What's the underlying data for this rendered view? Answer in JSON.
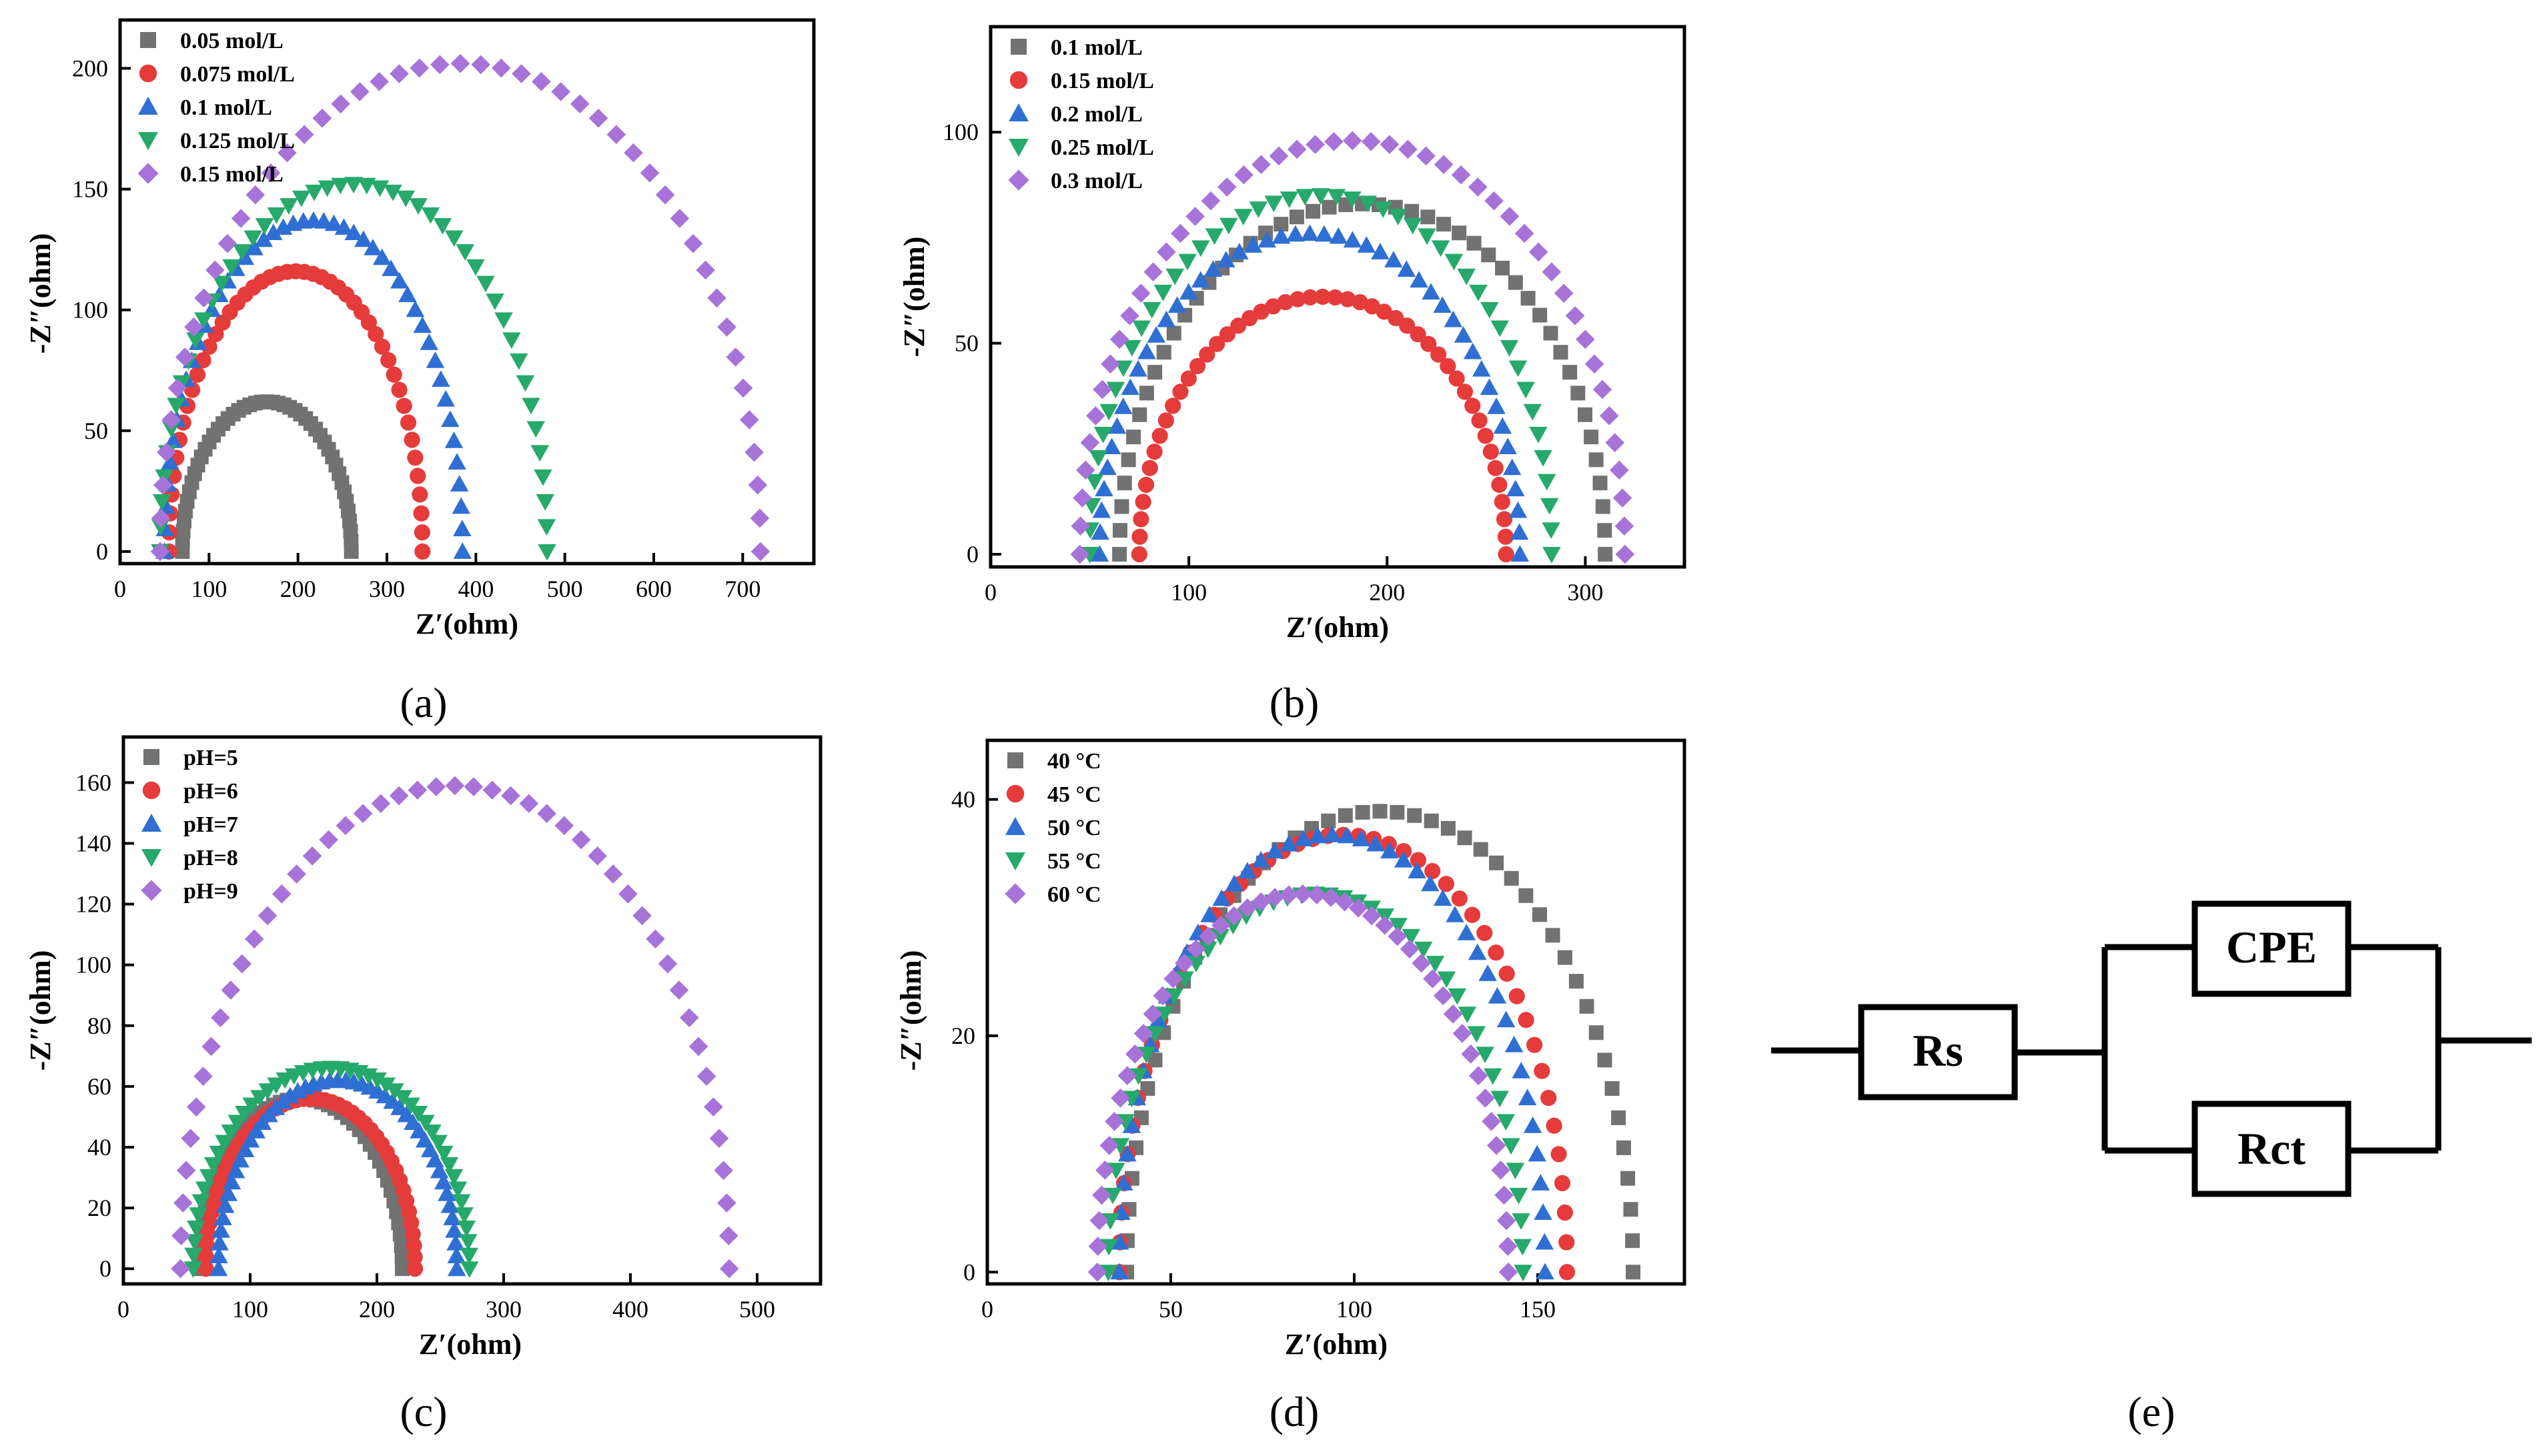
{
  "colors": {
    "s1": "#727272",
    "s2": "#e53b3b",
    "s3": "#2f6fd4",
    "s4": "#26a96a",
    "s5": "#a773d9",
    "axis": "#000000"
  },
  "chart_data": [
    {
      "id": "a",
      "type": "scatter",
      "panel_label": "(a)",
      "title": "",
      "xlabel": "Z′(ohm)",
      "ylabel": "-Z″(ohm)",
      "xlim": [
        0,
        780
      ],
      "ylim": [
        -5,
        220
      ],
      "xticks": [
        0,
        100,
        200,
        300,
        400,
        500,
        600,
        700
      ],
      "yticks": [
        0,
        50,
        100,
        150,
        200
      ],
      "legend_position": "top-left",
      "series": [
        {
          "name": "0.05 mol/L",
          "marker": "square",
          "rs": 70,
          "rct": 190,
          "ymax": 62
        },
        {
          "name": "0.075 mol/L",
          "marker": "circle",
          "rs": 55,
          "rct": 285,
          "ymax": 116
        },
        {
          "name": "0.1 mol/L",
          "marker": "triangle-up",
          "rs": 50,
          "rct": 335,
          "ymax": 137
        },
        {
          "name": "0.125 mol/L",
          "marker": "triangle-down",
          "rs": 45,
          "rct": 435,
          "ymax": 152
        },
        {
          "name": "0.15 mol/L",
          "marker": "diamond",
          "rs": 45,
          "rct": 675,
          "ymax": 202
        }
      ]
    },
    {
      "id": "b",
      "type": "scatter",
      "panel_label": "(b)",
      "title": "",
      "xlabel": "Z′(ohm)",
      "ylabel": "-Z″(ohm)",
      "xlim": [
        0,
        350
      ],
      "ylim": [
        -3,
        125
      ],
      "xticks": [
        0,
        100,
        200,
        300
      ],
      "yticks": [
        0,
        50,
        100
      ],
      "legend_position": "top-left",
      "series": [
        {
          "name": "0.1 mol/L",
          "marker": "square",
          "rs": 65,
          "rct": 245,
          "ymax": 83
        },
        {
          "name": "0.15 mol/L",
          "marker": "circle",
          "rs": 75,
          "rct": 185,
          "ymax": 61
        },
        {
          "name": "0.2 mol/L",
          "marker": "triangle-up",
          "rs": 55,
          "rct": 212,
          "ymax": 76
        },
        {
          "name": "0.25 mol/L",
          "marker": "triangle-down",
          "rs": 50,
          "rct": 233,
          "ymax": 85
        },
        {
          "name": "0.3 mol/L",
          "marker": "diamond",
          "rs": 45,
          "rct": 275,
          "ymax": 98
        }
      ]
    },
    {
      "id": "c",
      "type": "scatter",
      "panel_label": "(c)",
      "title": "",
      "xlabel": "Z′(ohm)",
      "ylabel": "-Z″(ohm)",
      "xlim": [
        0,
        550
      ],
      "ylim": [
        -5,
        175
      ],
      "xticks": [
        0,
        100,
        200,
        300,
        400,
        500
      ],
      "yticks": [
        0,
        20,
        40,
        60,
        80,
        100,
        120,
        140,
        160
      ],
      "legend_position": "top-left",
      "series": [
        {
          "name": "pH=5",
          "marker": "square",
          "rs": 60,
          "rct": 160,
          "ymax": 56
        },
        {
          "name": "pH=6",
          "marker": "circle",
          "rs": 65,
          "rct": 165,
          "ymax": 56
        },
        {
          "name": "pH=7",
          "marker": "triangle-up",
          "rs": 75,
          "rct": 188,
          "ymax": 62
        },
        {
          "name": "pH=8",
          "marker": "triangle-down",
          "rs": 55,
          "rct": 218,
          "ymax": 66
        },
        {
          "name": "pH=9",
          "marker": "diamond",
          "rs": 45,
          "rct": 433,
          "ymax": 159
        }
      ]
    },
    {
      "id": "d",
      "type": "scatter",
      "panel_label": "(d)",
      "title": "",
      "xlabel": "Z′(ohm)",
      "ylabel": "-Z″(ohm)",
      "xlim": [
        0,
        190
      ],
      "ylim": [
        -1,
        45
      ],
      "xticks": [
        0,
        50,
        100,
        150
      ],
      "yticks": [
        0,
        20,
        40
      ],
      "legend_position": "top-left",
      "series": [
        {
          "name": "40 °C",
          "marker": "square",
          "rs": 38,
          "rct": 138,
          "ymax": 39
        },
        {
          "name": "45 °C",
          "marker": "circle",
          "rs": 36,
          "rct": 122,
          "ymax": 37
        },
        {
          "name": "50 °C",
          "marker": "triangle-up",
          "rs": 36,
          "rct": 116,
          "ymax": 37
        },
        {
          "name": "55 °C",
          "marker": "triangle-down",
          "rs": 33,
          "rct": 113,
          "ymax": 32
        },
        {
          "name": "60 °C",
          "marker": "diamond",
          "rs": 30,
          "rct": 112,
          "ymax": 32
        }
      ]
    }
  ],
  "circuit": {
    "panel_label": "(e)",
    "rs_label": "Rs",
    "cpe_label": "CPE",
    "rct_label": "Rct"
  }
}
